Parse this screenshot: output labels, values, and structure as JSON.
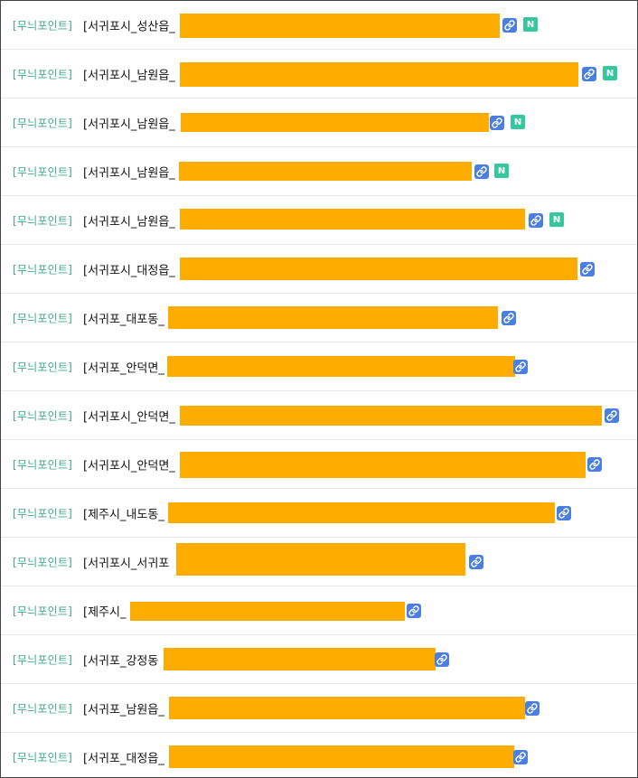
{
  "accent_colors": {
    "category": "#3fa88a",
    "redaction": "#ffac00",
    "link_icon": "#4a7fe0",
    "new_badge": "#35c79e"
  },
  "posts": [
    {
      "category": "[무늬포인트]",
      "title_prefix": "[서귀포시_성산읍_",
      "link_icon": "link-icon",
      "is_new": true,
      "new_label": "N"
    },
    {
      "category": "[무늬포인트]",
      "title_prefix": "[서귀포시_남원읍_",
      "link_icon": "link-icon",
      "is_new": true,
      "new_label": "N"
    },
    {
      "category": "[무늬포인트]",
      "title_prefix": "[서귀포시_남원읍_",
      "link_icon": "link-icon",
      "is_new": true,
      "new_label": "N"
    },
    {
      "category": "[무늬포인트]",
      "title_prefix": "[서귀포시_남원읍_",
      "link_icon": "link-icon",
      "is_new": true,
      "new_label": "N"
    },
    {
      "category": "[무늬포인트]",
      "title_prefix": "[서귀포시_남원읍_",
      "link_icon": "link-icon",
      "is_new": true,
      "new_label": "N"
    },
    {
      "category": "[무늬포인트]",
      "title_prefix": "[서귀포시_대정읍_",
      "link_icon": "link-icon",
      "is_new": false
    },
    {
      "category": "[무늬포인트]",
      "title_prefix": "[서귀포_대포동_",
      "link_icon": "link-icon",
      "is_new": false
    },
    {
      "category": "[무늬포인트]",
      "title_prefix": "[서귀포_안덕면_",
      "link_icon": "link-icon",
      "is_new": false
    },
    {
      "category": "[무늬포인트]",
      "title_prefix": "[서귀포시_안덕면_",
      "link_icon": "link-icon",
      "is_new": false
    },
    {
      "category": "[무늬포인트]",
      "title_prefix": "[서귀포시_안덕면_",
      "link_icon": "link-icon",
      "is_new": false
    },
    {
      "category": "[무늬포인트]",
      "title_prefix": "[제주시_내도동_",
      "link_icon": "link-icon",
      "is_new": false
    },
    {
      "category": "[무늬포인트]",
      "title_prefix": "[서귀포시_서귀포",
      "link_icon": "link-icon",
      "is_new": false
    },
    {
      "category": "[무늬포인트]",
      "title_prefix": "[제주시_",
      "link_icon": "link-icon",
      "is_new": false
    },
    {
      "category": "[무늬포인트]",
      "title_prefix": "[서귀포_강정동",
      "link_icon": "link-icon",
      "is_new": false
    },
    {
      "category": "[무늬포인트]",
      "title_prefix": "[서귀포_남원읍_",
      "link_icon": "link-icon",
      "is_new": false
    },
    {
      "category": "[무늬포인트]",
      "title_prefix": "[서귀포_대정읍_",
      "link_icon": "link-icon",
      "is_new": false
    }
  ]
}
